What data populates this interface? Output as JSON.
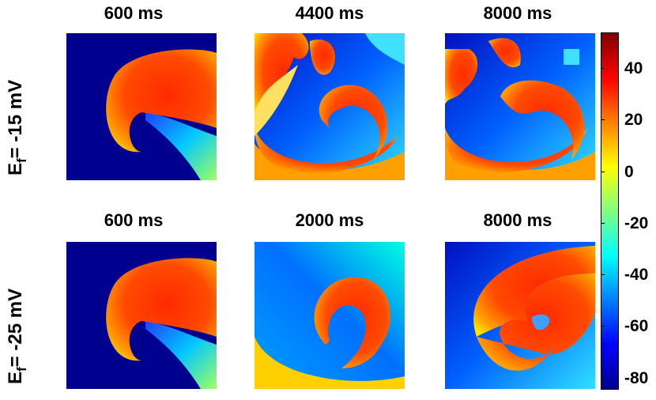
{
  "columns_top": [
    "600 ms",
    "4400 ms",
    "8000 ms"
  ],
  "columns_bottom": [
    "600 ms",
    "2000 ms",
    "8000 ms"
  ],
  "rows": [
    {
      "label_main": "E",
      "label_sub": "f",
      "label_rest": "= -15 mV"
    },
    {
      "label_main": "E",
      "label_sub": "f",
      "label_rest": "= -25 mV"
    }
  ],
  "colorbar": {
    "ticks": [
      "40",
      "20",
      "0",
      "-20",
      "-40",
      "-60",
      "-80"
    ],
    "colors": {
      "min": "#00008f",
      "mid_low": "#00ffff",
      "mid": "#ffff00",
      "mid_high": "#ff0000",
      "max": "#800000"
    }
  }
}
